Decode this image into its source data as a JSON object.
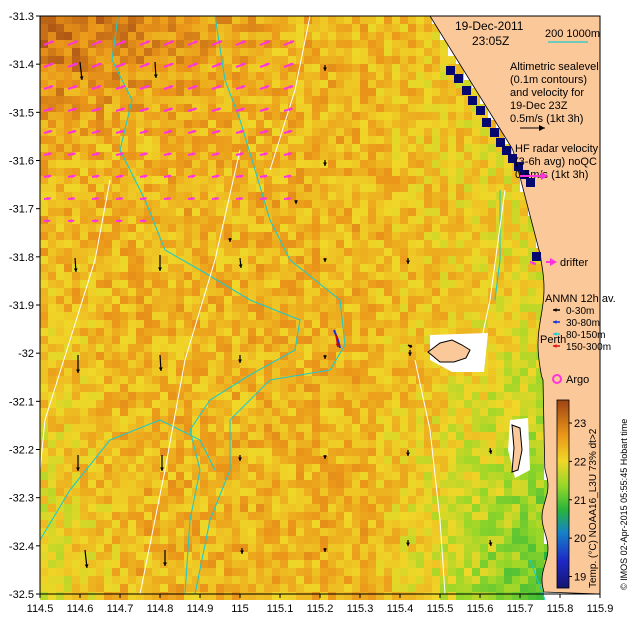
{
  "map": {
    "date": "19-Dec-2011",
    "time": "23:05Z",
    "bathy_legend": "200  1000m",
    "x_ticks": [
      "114.5",
      "114.6",
      "114.7",
      "114.8",
      "114.9",
      "115",
      "115.1",
      "115.2",
      "115.3",
      "115.4",
      "115.5",
      "115.6",
      "115.7",
      "115.8",
      "115.9"
    ],
    "y_ticks": [
      "-31.3",
      "-31.4",
      "-31.5",
      "-31.6",
      "-31.7",
      "-31.8",
      "-31.9",
      "-32",
      "-32.1",
      "-32.2",
      "-32.3",
      "-32.4",
      "-32.5"
    ],
    "lon_range": [
      114.5,
      115.9
    ],
    "lat_range": [
      -32.5,
      -31.3
    ],
    "altimetry_text": [
      "Altimetric sealevel",
      "(0.1m contours)",
      "and velocity for",
      "19-Dec 23Z",
      "0.5m/s (1kt 3h)"
    ],
    "hf_text": [
      "HF radar velocity",
      "(3-6h avg) noQC",
      "0.5m/s (1kt 3h)"
    ],
    "drifter_label": "drifter",
    "anmn_title": "ANMN 12h av.",
    "anmn_items": [
      {
        "label": "0-30m",
        "color": "#000000"
      },
      {
        "label": "30-80m",
        "color": "#1030e0"
      },
      {
        "label": "80-150m",
        "color": "#20d0d0"
      },
      {
        "label": "150-300m",
        "color": "#e01010"
      }
    ],
    "argo_label": "Argo",
    "place_label": "Perth",
    "colorbar_ticks": [
      "23",
      "22",
      "21",
      "20",
      "19"
    ],
    "colorbar_range": [
      18.7,
      23.6
    ],
    "colorbar_label": "Temp. (°C) NOAA16_L3U 73% dt>2",
    "credit": "© IMOS 02-Apr-2015 05:55:45 Hobart time",
    "colors": {
      "land": "#fbc89a",
      "magenta": "#ff33dd",
      "bathy": "#22c9c9",
      "ssh": "#ffffff",
      "nodata": "#ffffff",
      "shelf_edge": "#05086e"
    }
  }
}
